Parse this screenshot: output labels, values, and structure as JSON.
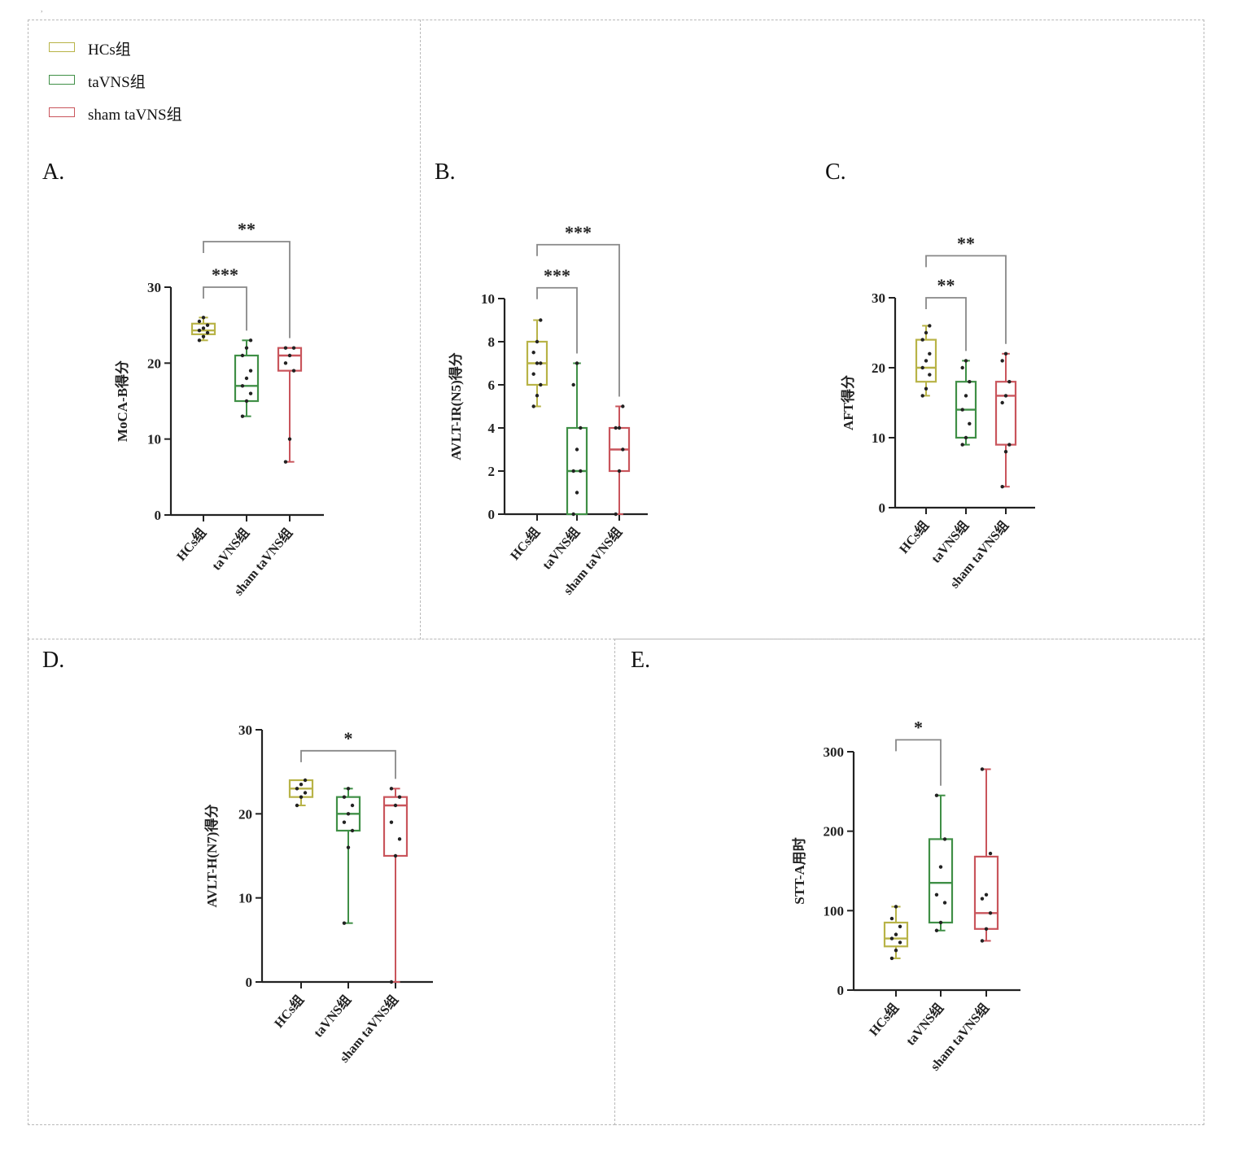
{
  "top_mark": ",",
  "legend": [
    {
      "label": "HCs组",
      "color": "#b8b347"
    },
    {
      "label": "taVNS组",
      "color": "#3f8f46"
    },
    {
      "label": "sham taVNS组",
      "color": "#c9555c"
    }
  ],
  "panel_labels": {
    "A": "A.",
    "B": "B.",
    "C": "C.",
    "D": "D.",
    "E": "E."
  },
  "colors": {
    "hc": "#b8b347",
    "tavns": "#3f8f46",
    "sham": "#c9555c",
    "sig": "#888888"
  },
  "chart_data": [
    {
      "id": "A",
      "type": "box",
      "ylabel": "MoCA-B得分",
      "ylim": [
        0,
        30
      ],
      "yticks": [
        "0",
        "10",
        "20",
        "30"
      ],
      "categories": [
        "HCs组",
        "taVNS组",
        "sham taVNS组"
      ],
      "boxes": [
        {
          "min": 23,
          "q1": 23.8,
          "median": 24.3,
          "q3": 25.2,
          "max": 26,
          "points": [
            23,
            23.5,
            24,
            24.3,
            24.6,
            25,
            25.5,
            26
          ]
        },
        {
          "min": 13,
          "q1": 15,
          "median": 17,
          "q3": 21,
          "max": 23,
          "points": [
            13,
            15,
            16,
            17,
            18,
            19,
            21,
            22,
            23
          ]
        },
        {
          "min": 7,
          "q1": 19,
          "median": 21,
          "q3": 22,
          "max": 22,
          "points": [
            7,
            10,
            19,
            20,
            21,
            22,
            22
          ]
        }
      ],
      "sig": [
        {
          "from": 0,
          "to": 1,
          "y": 30,
          "label": "***"
        },
        {
          "from": 0,
          "to": 2,
          "y": 36,
          "label": "**"
        }
      ]
    },
    {
      "id": "B",
      "type": "box",
      "ylabel": "AVLT-IR(N5)得分",
      "ylim": [
        0,
        10
      ],
      "yticks": [
        "0",
        "2",
        "4",
        "6",
        "8",
        "10"
      ],
      "categories": [
        "HCs组",
        "taVNS组",
        "sham taVNS组"
      ],
      "boxes": [
        {
          "min": 5,
          "q1": 6,
          "median": 7,
          "q3": 8,
          "max": 9,
          "points": [
            5,
            5.5,
            6,
            6.5,
            7,
            7,
            7.5,
            8,
            9
          ]
        },
        {
          "min": 0,
          "q1": 0,
          "median": 2,
          "q3": 4,
          "max": 7,
          "points": [
            0,
            1,
            2,
            2,
            3,
            4,
            6,
            7
          ]
        },
        {
          "min": 0,
          "q1": 2,
          "median": 3,
          "q3": 4,
          "max": 5,
          "points": [
            0,
            2,
            3,
            4,
            4,
            5
          ]
        }
      ],
      "sig": [
        {
          "from": 0,
          "to": 1,
          "y": 10.5,
          "label": "***"
        },
        {
          "from": 0,
          "to": 2,
          "y": 12.5,
          "label": "***"
        }
      ]
    },
    {
      "id": "C",
      "type": "box",
      "ylabel": "AFT得分",
      "ylim": [
        0,
        30
      ],
      "yticks": [
        "0",
        "10",
        "20",
        "30"
      ],
      "categories": [
        "HCs组",
        "taVNS组",
        "sham taVNS组"
      ],
      "boxes": [
        {
          "min": 16,
          "q1": 18,
          "median": 20,
          "q3": 24,
          "max": 26,
          "points": [
            16,
            17,
            19,
            20,
            21,
            22,
            24,
            25,
            26
          ]
        },
        {
          "min": 9,
          "q1": 10,
          "median": 14,
          "q3": 18,
          "max": 21,
          "points": [
            9,
            10,
            12,
            14,
            16,
            18,
            20,
            21
          ]
        },
        {
          "min": 3,
          "q1": 9,
          "median": 16,
          "q3": 18,
          "max": 22,
          "points": [
            3,
            8,
            9,
            15,
            16,
            18,
            21,
            22
          ]
        }
      ],
      "sig": [
        {
          "from": 0,
          "to": 1,
          "y": 30,
          "label": "**"
        },
        {
          "from": 0,
          "to": 2,
          "y": 36,
          "label": "**"
        }
      ]
    },
    {
      "id": "D",
      "type": "box",
      "ylabel": "AVLT-H(N7)得分",
      "ylim": [
        0,
        30
      ],
      "yticks": [
        "0",
        "10",
        "20",
        "30"
      ],
      "categories": [
        "HCs组",
        "taVNS组",
        "sham taVNS组"
      ],
      "boxes": [
        {
          "min": 21,
          "q1": 22,
          "median": 23,
          "q3": 24,
          "max": 24,
          "points": [
            21,
            22,
            22.5,
            23,
            23.5,
            24
          ]
        },
        {
          "min": 7,
          "q1": 18,
          "median": 20,
          "q3": 22,
          "max": 23,
          "points": [
            7,
            16,
            18,
            19,
            20,
            21,
            22,
            23
          ]
        },
        {
          "min": 0,
          "q1": 15,
          "median": 21,
          "q3": 22,
          "max": 23,
          "points": [
            0,
            15,
            17,
            19,
            21,
            22,
            23
          ]
        }
      ],
      "sig": [
        {
          "from": 0,
          "to": 2,
          "y": 27.5,
          "label": "*"
        }
      ]
    },
    {
      "id": "E",
      "type": "box",
      "ylabel": "STT-A用时",
      "ylim": [
        0,
        300
      ],
      "yticks": [
        "0",
        "100",
        "200",
        "300"
      ],
      "categories": [
        "HCs组",
        "taVNS组",
        "sham taVNS组"
      ],
      "boxes": [
        {
          "min": 40,
          "q1": 55,
          "median": 65,
          "q3": 85,
          "max": 105,
          "points": [
            40,
            50,
            60,
            65,
            70,
            80,
            90,
            105
          ]
        },
        {
          "min": 75,
          "q1": 85,
          "median": 135,
          "q3": 190,
          "max": 245,
          "points": [
            75,
            85,
            110,
            120,
            155,
            190,
            245
          ]
        },
        {
          "min": 62,
          "q1": 77,
          "median": 97,
          "q3": 168,
          "max": 278,
          "points": [
            62,
            77,
            97,
            115,
            120,
            172,
            278
          ]
        }
      ],
      "sig": [
        {
          "from": 0,
          "to": 1,
          "y": 315,
          "label": "*"
        }
      ]
    }
  ]
}
